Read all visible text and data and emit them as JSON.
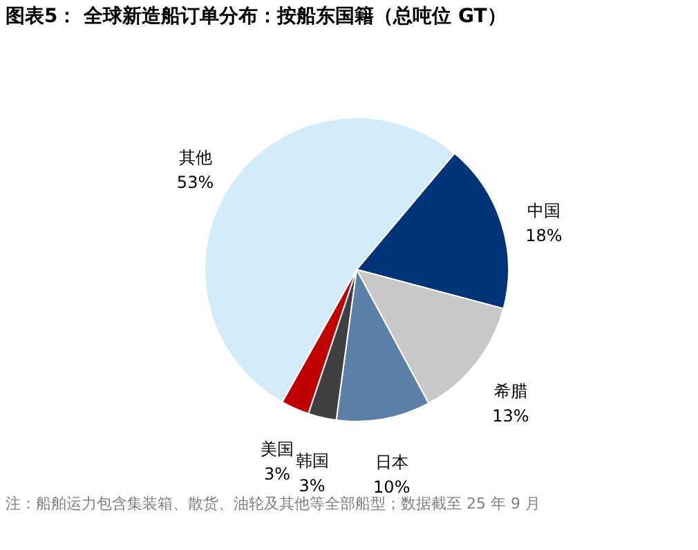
{
  "chart_data": {
    "type": "pie",
    "title": "图表5：  全球新造船订单分布：按船东国籍（总吨位 GT）",
    "categories": [
      "中国",
      "希腊",
      "日本",
      "韩国",
      "美国",
      "其他"
    ],
    "values": [
      18,
      13,
      10,
      3,
      3,
      53
    ],
    "colors": [
      "#003478",
      "#c8c8c8",
      "#5b7fa6",
      "#404040",
      "#c00000",
      "#d4ecfa"
    ],
    "value_labels": [
      "18%",
      "13%",
      "10%",
      "3%",
      "3%",
      "53%"
    ],
    "annotations": [
      "注：船舶运力包含集装箱、散货、油轮及其他等全部船型；数据截至 25 年 9 月"
    ]
  }
}
